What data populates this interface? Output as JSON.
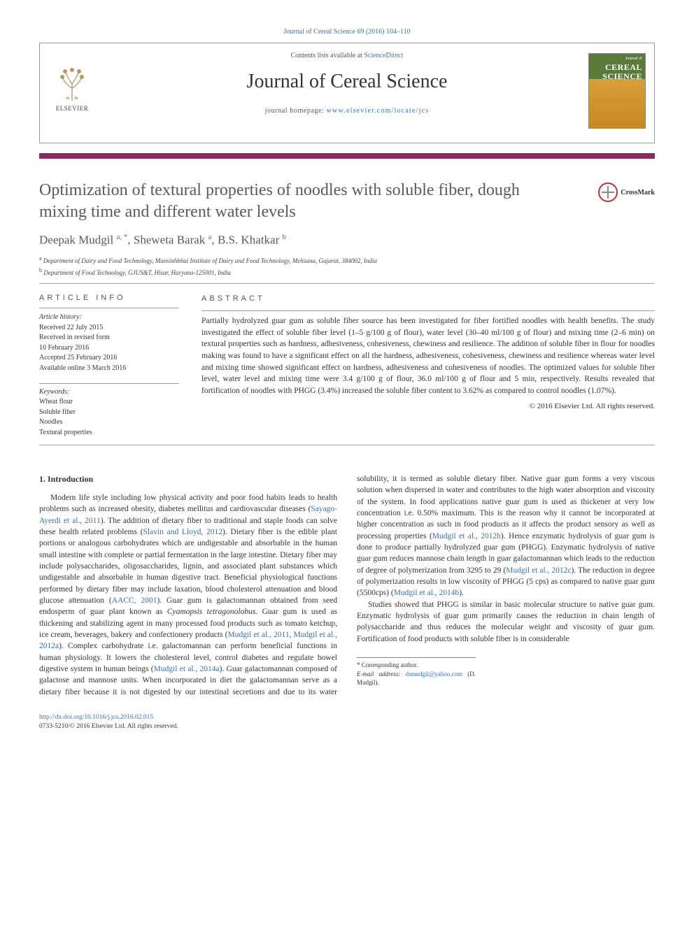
{
  "citation": "Journal of Cereal Science 69 (2016) 104–110",
  "header": {
    "elsevier": "ELSEVIER",
    "contents_prefix": "Contents lists available at ",
    "contents_link": "ScienceDirect",
    "journal_name": "Journal of Cereal Science",
    "homepage_prefix": "journal homepage: ",
    "homepage_link": "www.elsevier.com/locate/jcs",
    "cover_top": "Journal of",
    "cover_title": "CEREAL SCIENCE"
  },
  "crossmark": "CrossMark",
  "title": "Optimization of textural properties of noodles with soluble fiber, dough mixing time and different water levels",
  "authors_html": "Deepak Mudgil <sup>a, *</sup>, Sheweta Barak <sup>a</sup>, B.S. Khatkar <sup>b</sup>",
  "affiliations": [
    {
      "sup": "a",
      "text": "Department of Dairy and Food Technology, Mansinhbhai Institute of Dairy and Food Technology, Mehsana, Gujarat, 384002, India"
    },
    {
      "sup": "b",
      "text": "Department of Food Technology, GJUS&T, Hisar, Haryana-125001, India"
    }
  ],
  "info": {
    "heading": "ARTICLE INFO",
    "history_label": "Article history:",
    "history": [
      "Received 22 July 2015",
      "Received in revised form",
      "10 February 2016",
      "Accepted 25 February 2016",
      "Available online 3 March 2016"
    ],
    "keywords_label": "Keywords:",
    "keywords": [
      "Wheat flour",
      "Soluble fiber",
      "Noodles",
      "Textural properties"
    ]
  },
  "abstract": {
    "heading": "ABSTRACT",
    "text": "Partially hydrolyzed guar gum as soluble fiber source has been investigated for fiber fortified noodles with health benefits. The study investigated the effect of soluble fiber level (1–5 g/100 g of flour), water level (30–40 ml/100 g of flour) and mixing time (2–6 min) on textural properties such as hardness, adhesiveness, cohesiveness, chewiness and resilience. The addition of soluble fiber in flour for noodles making was found to have a significant effect on all the hardness, adhesiveness, cohesiveness, chewiness and resilience whereas water level and mixing time showed significant effect on hardness, adhesiveness and cohesiveness of noodles. The optimized values for soluble fiber level, water level and mixing time were 3.4 g/100 g of flour, 36.0 ml/100 g of flour and 5 min, respectively. Results revealed that fortification of noodles with PHGG (3.4%) increased the soluble fiber content to 3.62% as compared to control noodles (1.07%).",
    "copyright": "© 2016 Elsevier Ltd. All rights reserved."
  },
  "body": {
    "intro_heading": "1. Introduction",
    "p1a": "Modern life style including low physical activity and poor food habits leads to health problems such as increased obesity, diabetes mellitus and cardiovascular diseases (",
    "p1_ref1": "Sayago-Ayerdi et al., 2011",
    "p1b": "). The addition of dietary fiber to traditional and staple foods can solve these health related problems (",
    "p1_ref2": "Slavin and Lloyd, 2012",
    "p1c": "). Dietary fiber is the edible plant portions or analogous carbohydrates which are undigestable and absorbable in the human small intestine with complete or partial fermentation in the large intestine. Dietary fiber may include polysaccharides, oligosaccharides, lignin, and associated plant substances which undigestable and absorbable in human digestive tract. Beneficial physiological functions performed by dietary fiber may include laxation, blood cholesterol attenuation and blood glucose attenuation (",
    "p1_ref3": "AACC, 2001",
    "p1d": "). Guar gum is galactomannan obtained from seed endosperm of guar plant known as ",
    "p1_species": "Cyamopsis tetragonolobus",
    "p1e": ". Guar gum is used as thickening and stabilizing agent in many processed food products such as tomato ketchup, ice cream, beverages, bakery and confectionery products (",
    "p1_ref4": "Mudgil et al., 2011, Mudgil et al., 2012a",
    "p1f": "). Complex carbohydrate i.e. galactomannan can perform beneficial functions in human physiology. It lowers the cholesterol level, control diabetes and regulate bowel digestive system in human beings (",
    "p1_ref5": "Mudgil et al., 2014a",
    "p1g": "). Guar galactomannan composed of galactose and mannose units. When incorporated in diet the galactomannan serve as a dietary fiber because it is not digested by our intestinal secretions and due to its water solubility, it is termed as soluble dietary fiber. Native guar gum forms a very viscous solution when dispersed in water and contributes to the high water absorption and viscosity of the system. In food applications native guar gum is used as thickener at very low concentration i.e. 0.50% maximum. This is the reason why it cannot be incorporated at higher concentration as such in food products as it affects the product sensory as well as processing properties (",
    "p1_ref6": "Mudgil et al., 2012b",
    "p1h": "). Hence enzymatic hydrolysis of guar gum is done to produce partially hydrolyzed guar gum (PHGG). Enzymatic hydrolysis of native guar gum reduces mannose chain length in guar galactomannan which leads to the reduction of degree of polymerization from 3295 to 29 (",
    "p1_ref7": "Mudgil et al., 2012c",
    "p1i": "). The reduction in degree of polymerization results in low viscosity of PHGG (5 cps) as compared to native guar gum (5500cps) (",
    "p1_ref8": "Mudgil et al., 2014b",
    "p1j": ").",
    "p2": "Studies showed that PHGG is similar in basic molecular structure to native guar gum. Enzymatic hydrolysis of guar gum primarily causes the reduction in chain length of polysaccharide and thus reduces the molecular weight and viscosity of guar gum. Fortification of food products with soluble fiber is in considerable"
  },
  "footnote": {
    "corr": "* Corresponding author.",
    "email_label": "E-mail address: ",
    "email": "dsmudgil@yahoo.com",
    "email_suffix": " (D. Mudgil)."
  },
  "footer": {
    "doi": "http://dx.doi.org/10.1016/j.jcs.2016.02.015",
    "issn_line": "0733-5210/© 2016 Elsevier Ltd. All rights reserved."
  },
  "colors": {
    "link": "#3a6fb0",
    "bar": "#8a2a5a",
    "title_gray": "#5a5a5a"
  }
}
